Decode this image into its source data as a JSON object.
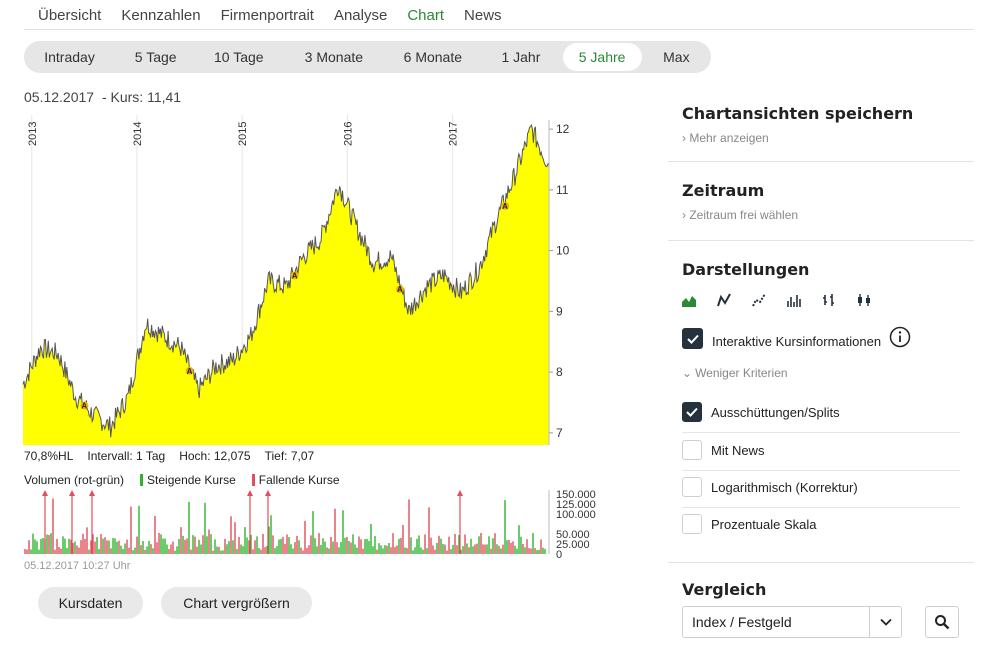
{
  "nav": {
    "tabs": [
      {
        "label": "Übersicht"
      },
      {
        "label": "Kennzahlen"
      },
      {
        "label": "Firmenportrait"
      },
      {
        "label": "Analyse"
      },
      {
        "label": "Chart"
      },
      {
        "label": "News"
      }
    ],
    "active_index": 4
  },
  "periods": {
    "items": [
      {
        "label": "Intraday"
      },
      {
        "label": "5 Tage"
      },
      {
        "label": "10 Tage"
      },
      {
        "label": "3 Monate"
      },
      {
        "label": "6 Monate"
      },
      {
        "label": "1 Jahr"
      },
      {
        "label": "5 Jahre"
      },
      {
        "label": "Max"
      }
    ],
    "active_index": 6
  },
  "quote": {
    "date": "05.12.2017",
    "kurs_text": "- Kurs: 11,41"
  },
  "stats": {
    "hl": "70,8%HL",
    "intervall": "Intervall: 1 Tag",
    "hoch": "Hoch:  12,075",
    "tief": "Tief:   7,07"
  },
  "volume_legend": {
    "title": "Volumen (rot-grün)",
    "up": "Steigende Kurse",
    "down": "Fallende Kurse"
  },
  "timestamp": "05.12.2017 10:27 Uhr",
  "buttons": {
    "kursdaten": "Kursdaten",
    "vergroessern": "Chart vergrößern"
  },
  "sidebar": {
    "save_title": "Chartansichten speichern",
    "save_link": "Mehr anzeigen",
    "zeitraum_title": "Zeitraum",
    "zeitraum_link": "Zeitraum frei wählen",
    "darstellungen_title": "Darstellungen",
    "icons": [
      "area-chart-icon",
      "line-chart-icon",
      "dotted-line-chart-icon",
      "bar-chart-icon",
      "ohlc-chart-icon",
      "candlestick-chart-icon"
    ],
    "interactive_label": "Interaktive Kursinformationen",
    "interactive_checked": true,
    "criteria_toggle": "Weniger Kriterien",
    "options": [
      {
        "label": "Ausschüttungen/Splits",
        "checked": true
      },
      {
        "label": "Mit News",
        "checked": false
      },
      {
        "label": "Logarithmisch (Korrektur)",
        "checked": false
      },
      {
        "label": "Prozentuale Skala",
        "checked": false
      }
    ],
    "vergleich_title": "Vergleich",
    "vergleich_value": "Index / Festgeld"
  },
  "colors": {
    "accent": "#2a8a36",
    "area_fill": "#ffff00",
    "price_line": "#555555",
    "volume_up": "#2db52d",
    "volume_down": "#e0505a"
  },
  "chart_data": {
    "type": "area",
    "x_labels": [
      "2013",
      "2014",
      "2015",
      "2016",
      "2017"
    ],
    "yticks": [
      7,
      8,
      9,
      10,
      11,
      12
    ],
    "ylim": [
      6.8,
      12.15
    ],
    "x": [
      "2012-12",
      "2013-02",
      "2013-04",
      "2013-06",
      "2013-08",
      "2013-10",
      "2013-12",
      "2014-02",
      "2014-04",
      "2014-06",
      "2014-08",
      "2014-10",
      "2014-12",
      "2015-02",
      "2015-04",
      "2015-06",
      "2015-08",
      "2015-10",
      "2015-12",
      "2016-02",
      "2016-04",
      "2016-06",
      "2016-08",
      "2016-10",
      "2016-12",
      "2017-02",
      "2017-04",
      "2017-06",
      "2017-08",
      "2017-10",
      "2017-12"
    ],
    "values": [
      7.8,
      8.4,
      8.3,
      7.6,
      7.3,
      7.1,
      7.6,
      8.8,
      8.6,
      8.4,
      7.7,
      8.1,
      8.2,
      8.6,
      9.5,
      9.4,
      9.9,
      10.2,
      11.1,
      10.4,
      9.8,
      9.9,
      9.0,
      9.4,
      9.6,
      9.3,
      9.7,
      10.5,
      11.2,
      12.0,
      11.4
    ],
    "markers": [
      {
        "x": "2013-07",
        "label": "A"
      },
      {
        "x": "2014-07",
        "label": "A"
      },
      {
        "x": "2015-07",
        "label": "A"
      },
      {
        "x": "2016-07",
        "label": "A"
      },
      {
        "x": "2017-07",
        "label": "A"
      }
    ],
    "volume": {
      "yticks": [
        "150.000",
        "125.000",
        "100.000",
        "50.000",
        "25.000",
        "0"
      ],
      "ylim": [
        0,
        150000
      ]
    }
  }
}
